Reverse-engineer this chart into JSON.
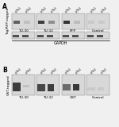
{
  "fig_bg": "#f0f0f0",
  "blot_bg": "#d8d8d8",
  "band_dark": "#222222",
  "title_A": "A",
  "title_B": "B",
  "ylabel_A": "Tag/RFP-tagged",
  "ylabel_B": "GST-tagged",
  "gapdh_label": "GAPDH",
  "groups_A": [
    "TU-30",
    "TU-32",
    "RFP",
    "Control"
  ],
  "groups_B": [
    "TU-30",
    "TU-32",
    "GST",
    "Control"
  ],
  "col_labels": [
    "γ-Tb1",
    "γ-Tb2"
  ],
  "band_A_top": [
    [
      [
        2,
        7,
        8,
        4,
        0.65
      ],
      [
        15,
        7,
        8,
        4,
        0.12
      ]
    ],
    [
      [
        2,
        7,
        8,
        4,
        0.85
      ],
      [
        15,
        7,
        8,
        4,
        0.4
      ]
    ],
    [
      [
        2,
        7,
        8,
        4,
        0.9
      ],
      [
        15,
        7,
        8,
        4,
        0.15
      ]
    ],
    [
      [
        2,
        7,
        8,
        4,
        0.08
      ],
      [
        15,
        7,
        8,
        4,
        0.08
      ]
    ]
  ],
  "band_A_gapdh": [
    [
      [
        1,
        2,
        8,
        3,
        0.75
      ],
      [
        13,
        2,
        8,
        3,
        0.75
      ]
    ],
    [
      [
        1,
        2,
        8,
        3,
        0.75
      ],
      [
        13,
        2,
        8,
        3,
        0.75
      ]
    ],
    [
      [
        1,
        2,
        8,
        3,
        0.75
      ],
      [
        13,
        2,
        8,
        3,
        0.75
      ]
    ],
    [
      [
        1,
        2,
        8,
        3,
        0.75
      ],
      [
        13,
        2,
        8,
        3,
        0.75
      ]
    ]
  ],
  "band_B": [
    [
      [
        1,
        5,
        10,
        11,
        0.85
      ],
      [
        14,
        10,
        8,
        3,
        0.12
      ]
    ],
    [
      [
        1,
        5,
        10,
        9,
        0.8
      ],
      [
        14,
        5,
        8,
        9,
        0.85
      ]
    ],
    [
      [
        1,
        6,
        10,
        8,
        0.6
      ],
      [
        14,
        6,
        8,
        8,
        0.88
      ]
    ],
    [
      [
        1,
        6,
        10,
        4,
        0.08
      ],
      [
        14,
        6,
        8,
        4,
        0.08
      ]
    ]
  ]
}
